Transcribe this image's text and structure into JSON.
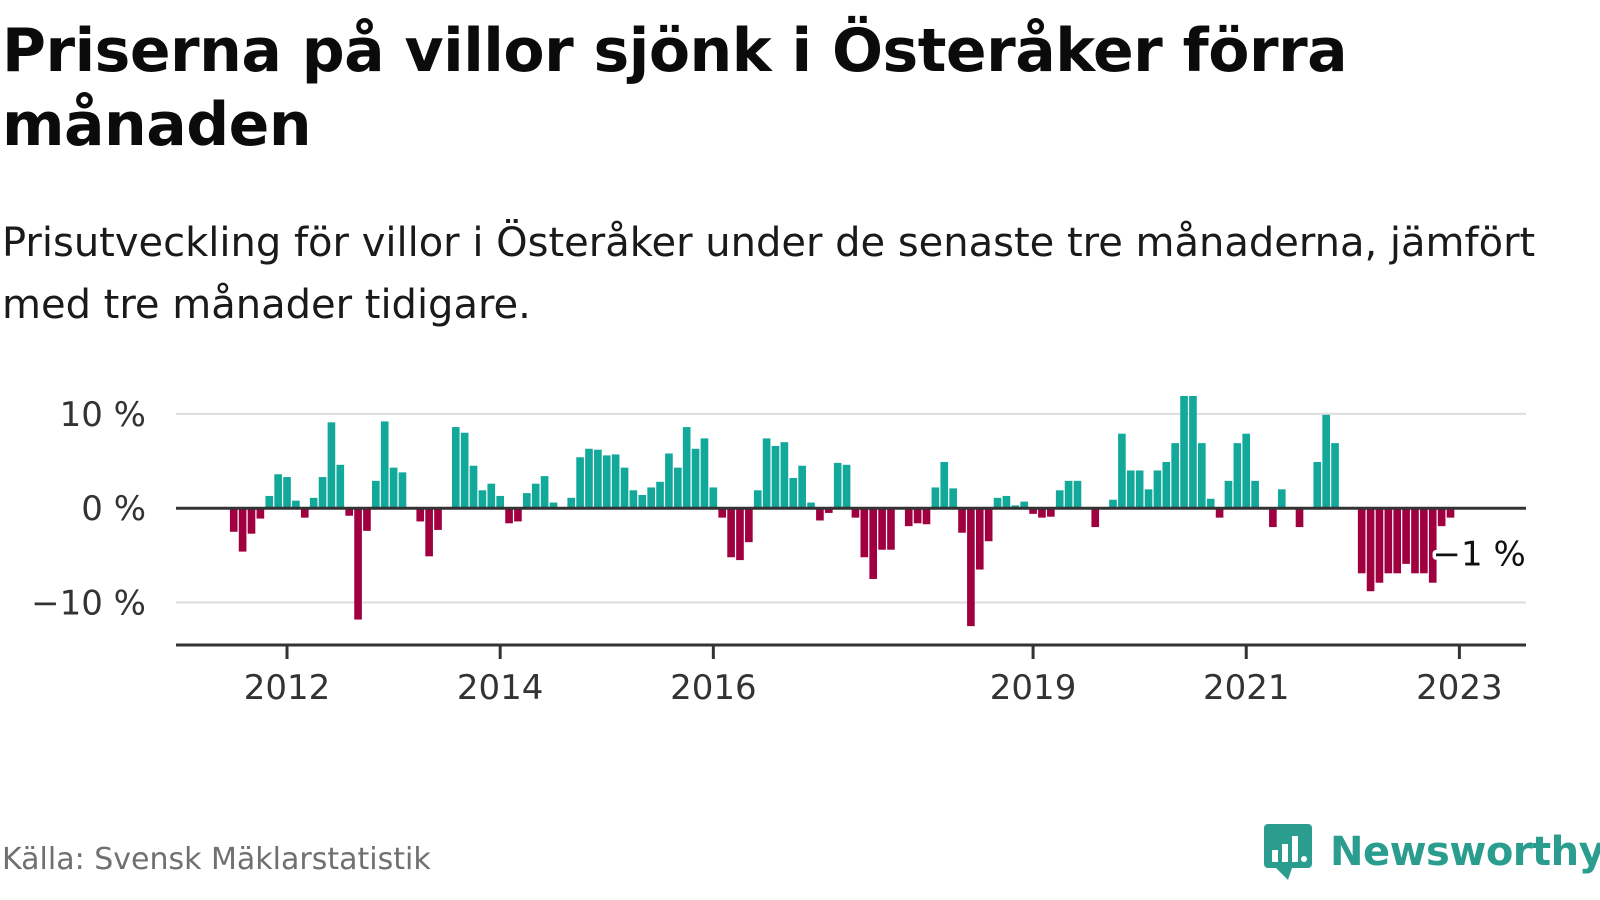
{
  "title": "Priserna på villor sjönk i Österåker förra månaden",
  "subtitle": "Prisutveckling för villor i Österåker under de senaste tre månaderna, jämfört med tre månader tidigare.",
  "source": "Källa: Svensk Mäklarstatistik",
  "brand": {
    "name": "Newsworthy",
    "icon": "bar-chart-speech-icon",
    "color": "#2a9d8f"
  },
  "colors": {
    "positive": "#12a89a",
    "negative": "#a0003f",
    "grid": "#dddddd",
    "axis": "#333333"
  },
  "chart_data": {
    "type": "bar",
    "title": "",
    "xlabel": "",
    "ylabel": "",
    "ylim": [
      -14.5,
      12
    ],
    "yticks": [
      10,
      0,
      -10
    ],
    "ytick_labels": [
      "10 %",
      "0 %",
      "−10 %"
    ],
    "grid": "horizontal",
    "x_start": "2011-01",
    "x_end": "2023-08",
    "xticks": [
      "2012-01",
      "2014-01",
      "2016-01",
      "2019-01",
      "2021-01",
      "2023-01"
    ],
    "xtick_labels": [
      "2012",
      "2014",
      "2016",
      "2019",
      "2021",
      "2023"
    ],
    "annotation": {
      "text": "−1 %",
      "x": "2023-03",
      "y": -1
    },
    "series": [
      {
        "values": [
          [
            "2011-07",
            -2.5
          ],
          [
            "2011-08",
            -4.6
          ],
          [
            "2011-09",
            -2.7
          ],
          [
            "2011-10",
            -1.1
          ],
          [
            "2011-11",
            1.3
          ],
          [
            "2011-12",
            3.6
          ],
          [
            "2012-01",
            3.3
          ],
          [
            "2012-02",
            0.8
          ],
          [
            "2012-03",
            -1.0
          ],
          [
            "2012-04",
            1.1
          ],
          [
            "2012-05",
            3.3
          ],
          [
            "2012-06",
            9.1
          ],
          [
            "2012-07",
            4.6
          ],
          [
            "2012-08",
            -0.8
          ],
          [
            "2012-09",
            -11.8
          ],
          [
            "2012-10",
            -2.4
          ],
          [
            "2012-11",
            2.9
          ],
          [
            "2012-12",
            9.2
          ],
          [
            "2013-01",
            4.3
          ],
          [
            "2013-02",
            3.8
          ],
          [
            "2013-04",
            -1.4
          ],
          [
            "2013-05",
            -5.1
          ],
          [
            "2013-06",
            -2.3
          ],
          [
            "2013-08",
            8.6
          ],
          [
            "2013-09",
            8.0
          ],
          [
            "2013-10",
            4.5
          ],
          [
            "2013-11",
            1.9
          ],
          [
            "2013-12",
            2.6
          ],
          [
            "2014-01",
            1.3
          ],
          [
            "2014-02",
            -1.6
          ],
          [
            "2014-03",
            -1.4
          ],
          [
            "2014-04",
            1.6
          ],
          [
            "2014-05",
            2.6
          ],
          [
            "2014-06",
            3.4
          ],
          [
            "2014-07",
            0.6
          ],
          [
            "2014-09",
            1.1
          ],
          [
            "2014-10",
            5.4
          ],
          [
            "2014-11",
            6.3
          ],
          [
            "2014-12",
            6.2
          ],
          [
            "2015-01",
            5.6
          ],
          [
            "2015-02",
            5.7
          ],
          [
            "2015-03",
            4.3
          ],
          [
            "2015-04",
            1.9
          ],
          [
            "2015-05",
            1.4
          ],
          [
            "2015-06",
            2.2
          ],
          [
            "2015-07",
            2.8
          ],
          [
            "2015-08",
            5.8
          ],
          [
            "2015-09",
            4.3
          ],
          [
            "2015-10",
            8.6
          ],
          [
            "2015-11",
            6.3
          ],
          [
            "2015-12",
            7.4
          ],
          [
            "2016-01",
            2.2
          ],
          [
            "2016-02",
            -1.0
          ],
          [
            "2016-03",
            -5.2
          ],
          [
            "2016-04",
            -5.5
          ],
          [
            "2016-05",
            -3.6
          ],
          [
            "2016-06",
            1.9
          ],
          [
            "2016-07",
            7.4
          ],
          [
            "2016-08",
            6.6
          ],
          [
            "2016-09",
            7.0
          ],
          [
            "2016-10",
            3.2
          ],
          [
            "2016-11",
            4.5
          ],
          [
            "2016-12",
            0.6
          ],
          [
            "2017-01",
            -1.3
          ],
          [
            "2017-02",
            -0.5
          ],
          [
            "2017-03",
            4.8
          ],
          [
            "2017-04",
            4.6
          ],
          [
            "2017-05",
            -1.0
          ],
          [
            "2017-06",
            -5.2
          ],
          [
            "2017-07",
            -7.5
          ],
          [
            "2017-08",
            -4.4
          ],
          [
            "2017-09",
            -4.4
          ],
          [
            "2017-11",
            -1.9
          ],
          [
            "2017-12",
            -1.6
          ],
          [
            "2018-01",
            -1.7
          ],
          [
            "2018-02",
            2.2
          ],
          [
            "2018-03",
            4.9
          ],
          [
            "2018-04",
            2.1
          ],
          [
            "2018-05",
            -2.6
          ],
          [
            "2018-06",
            -12.5
          ],
          [
            "2018-07",
            -6.5
          ],
          [
            "2018-08",
            -3.5
          ],
          [
            "2018-09",
            1.1
          ],
          [
            "2018-10",
            1.3
          ],
          [
            "2018-11",
            0.3
          ],
          [
            "2018-12",
            0.7
          ],
          [
            "2019-01",
            -0.6
          ],
          [
            "2019-02",
            -1.0
          ],
          [
            "2019-03",
            -0.9
          ],
          [
            "2019-04",
            1.9
          ],
          [
            "2019-05",
            2.9
          ],
          [
            "2019-06",
            2.9
          ],
          [
            "2019-08",
            -2.0
          ],
          [
            "2019-10",
            0.9
          ],
          [
            "2019-11",
            7.9
          ],
          [
            "2019-12",
            4.0
          ],
          [
            "2020-01",
            4.0
          ],
          [
            "2020-02",
            2.0
          ],
          [
            "2020-03",
            4.0
          ],
          [
            "2020-04",
            4.9
          ],
          [
            "2020-05",
            6.9
          ],
          [
            "2020-06",
            11.9
          ],
          [
            "2020-07",
            11.9
          ],
          [
            "2020-08",
            6.9
          ],
          [
            "2020-09",
            1.0
          ],
          [
            "2020-10",
            -1.0
          ],
          [
            "2020-11",
            2.9
          ],
          [
            "2020-12",
            6.9
          ],
          [
            "2021-01",
            7.9
          ],
          [
            "2021-02",
            2.9
          ],
          [
            "2021-04",
            -2.0
          ],
          [
            "2021-05",
            2.0
          ],
          [
            "2021-07",
            -2.0
          ],
          [
            "2021-09",
            4.9
          ],
          [
            "2021-10",
            9.9
          ],
          [
            "2021-11",
            6.9
          ],
          [
            "2022-02",
            -6.9
          ],
          [
            "2022-03",
            -8.8
          ],
          [
            "2022-04",
            -7.9
          ],
          [
            "2022-05",
            -6.9
          ],
          [
            "2022-06",
            -6.9
          ],
          [
            "2022-07",
            -5.9
          ],
          [
            "2022-08",
            -6.9
          ],
          [
            "2022-09",
            -6.9
          ],
          [
            "2022-10",
            -7.9
          ],
          [
            "2022-11",
            -1.9
          ],
          [
            "2022-12",
            -1.0
          ]
        ]
      }
    ]
  }
}
